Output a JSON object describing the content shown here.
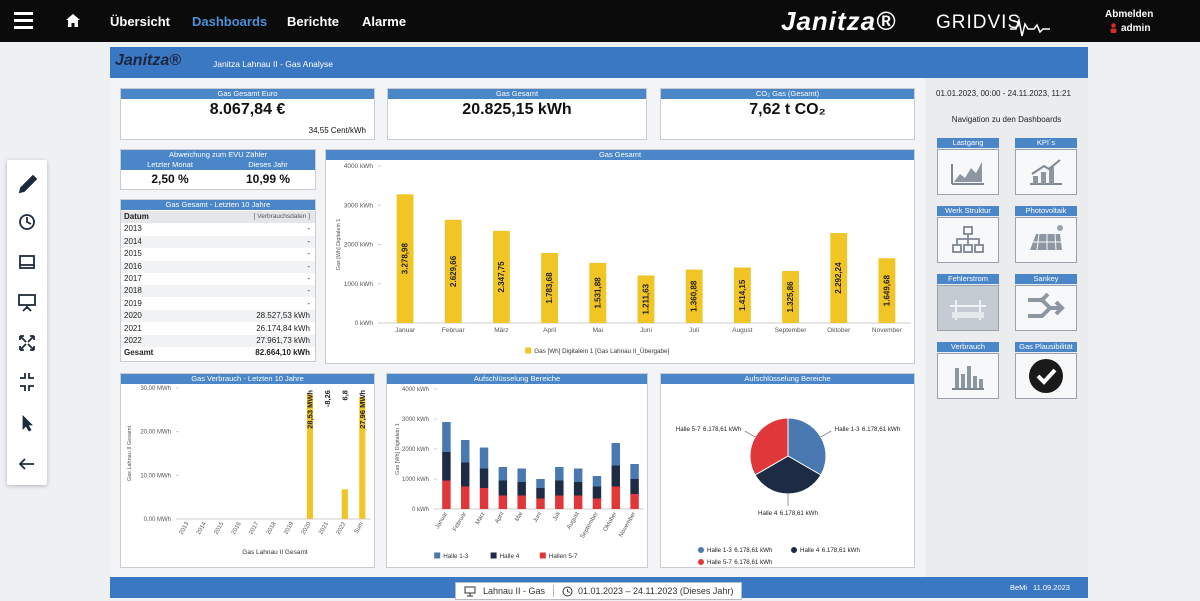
{
  "nav": {
    "items": [
      "Übersicht",
      "Dashboards",
      "Berichte",
      "Alarme"
    ],
    "brand": "Janitza®",
    "product": "GRIDVIS",
    "logout": "Abmelden",
    "user": "admin"
  },
  "header": {
    "logo": "Janitza®",
    "title": "Janitza Lahnau II - Gas Analyse"
  },
  "kpis": [
    {
      "title": "Gas Gesamt Euro",
      "value": "8.067,84 €",
      "note": "34,55 Cent/kWh"
    },
    {
      "title": "Gas Gesamt",
      "value": "20.825,15 kWh"
    },
    {
      "title": "CO₂ Gas (Gesamt)",
      "value": "7,62 t CO₂"
    }
  ],
  "deviation": {
    "title": "Abweichung zum EVU Zähler",
    "columns": [
      "Letzter Monat",
      "Dieses Jahr"
    ],
    "values": [
      "2,50 %",
      "10,99 %"
    ]
  },
  "table": {
    "title": "Gas Gesamt - Letzten 10 Jahre",
    "columns": [
      "Datum",
      "[ Verbrauchsdaten ]"
    ],
    "rows": [
      [
        "2013",
        "-"
      ],
      [
        "2014",
        "-"
      ],
      [
        "2015",
        "-"
      ],
      [
        "2016",
        "-"
      ],
      [
        "2017",
        "-"
      ],
      [
        "2018",
        "-"
      ],
      [
        "2019",
        "-"
      ],
      [
        "2020",
        "28.527,53 kWh"
      ],
      [
        "2021",
        "26.174,84 kWh"
      ],
      [
        "2022",
        "27.961,73 kWh"
      ]
    ],
    "total": [
      "Gesamt",
      "82.664,10 kWh"
    ]
  },
  "chart_data": [
    {
      "type": "bar",
      "title": "Gas Gesamt",
      "categories": [
        "Januar",
        "Februar",
        "März",
        "April",
        "Mai",
        "Juni",
        "Juli",
        "August",
        "September",
        "Oktober",
        "November"
      ],
      "series": [
        {
          "name": "Gas [Wh] Digitalein 1 [Gas Lahnau II_Übergabe]",
          "color": "#f2c526",
          "values": [
            3278.98,
            2629.66,
            2347.75,
            1783.68,
            1531.88,
            1211.63,
            1360.88,
            1414.15,
            1325.86,
            2292.24,
            1649.68
          ],
          "value_labels": [
            "3.278,98",
            "2.629,66",
            "2.347,75",
            "1.783,68",
            "1.531,88",
            "1.211,63",
            "1.360,88",
            "1.414,15",
            "1.325,86",
            "2.292,24",
            "1.649,68"
          ]
        }
      ],
      "ylabel": "Gas [Wh] Digitalein 1",
      "ylim": [
        0,
        4000
      ],
      "yticks": [
        {
          "value": 0,
          "label": "0 kWh"
        },
        {
          "value": 1000,
          "label": "1000 kWh"
        },
        {
          "value": 2000,
          "label": "2000 kWh"
        },
        {
          "value": 3000,
          "label": "3000 kWh"
        },
        {
          "value": 4000,
          "label": "4000 kWh"
        }
      ],
      "grid": false,
      "legend": "bottom"
    },
    {
      "type": "bar",
      "title": "Gas Verbrauch - Letzten 10 Jahre",
      "categories": [
        "2013",
        "2014",
        "2015",
        "2016",
        "2017",
        "2018",
        "2019",
        "2020",
        "2021",
        "2022",
        "Sum"
      ],
      "series": [
        {
          "color": "#f2c526",
          "values": [
            null,
            null,
            null,
            null,
            null,
            null,
            null,
            28.53,
            -8.26,
            6.8,
            27.96
          ],
          "value_labels": [
            null,
            null,
            null,
            null,
            null,
            null,
            null,
            "28,53 MWh",
            "-8,26",
            "6,8",
            "27,96 MWh"
          ]
        }
      ],
      "ylabel": "Gas Lahnau II Gesamt",
      "xlabel": "Gas Lahnau II Gesamt",
      "ylim": [
        0,
        30
      ],
      "yticks": [
        {
          "value": 0,
          "label": "0,00 MWh"
        },
        {
          "value": 10,
          "label": "10,00 MWh"
        },
        {
          "value": 20,
          "label": "20,00 MWh"
        },
        {
          "value": 30,
          "label": "30,00 MWh"
        }
      ],
      "grid": false
    },
    {
      "type": "stacked_bar",
      "title": "Aufschlüsselung Bereiche",
      "categories": [
        "Januar",
        "Februar",
        "März",
        "April",
        "Mai",
        "Juni",
        "Juli",
        "August",
        "September",
        "Oktober",
        "November"
      ],
      "series": [
        {
          "name": "Halle 1-3",
          "color": "#4a78b0",
          "values": [
            1000,
            750,
            700,
            450,
            450,
            300,
            450,
            450,
            350,
            750,
            500
          ]
        },
        {
          "name": "Halle 4",
          "color": "#1e2b45",
          "values": [
            950,
            800,
            650,
            500,
            450,
            350,
            500,
            450,
            400,
            700,
            500
          ]
        },
        {
          "name": "Hallen 5-7",
          "color": "#e0373a",
          "values": [
            950,
            750,
            700,
            450,
            450,
            350,
            450,
            450,
            350,
            750,
            500
          ]
        }
      ],
      "ylabel": "Gas [Wh] Digitalein 1",
      "ylim": [
        0,
        4000
      ],
      "yticks": [
        {
          "value": 0,
          "label": "0 kWh"
        },
        {
          "value": 1000,
          "label": "1000 kWh"
        },
        {
          "value": 2000,
          "label": "2000 kWh"
        },
        {
          "value": 3000,
          "label": "3000 kWh"
        },
        {
          "value": 4000,
          "label": "4000 kWh"
        }
      ],
      "grid": false,
      "legend": "bottom"
    },
    {
      "type": "pie",
      "title": "Aufschlüsselung Bereiche",
      "categories": [
        "Halle 1-3",
        "Halle 4",
        "Halle 5-7"
      ],
      "values": [
        6178.61,
        6178.61,
        6178.61
      ],
      "value_labels": [
        "6.178,61 kWh",
        "6.178,61 kWh",
        "6.178,61 kWh"
      ],
      "colors": [
        "#4a78b0",
        "#1e2b45",
        "#e0373a"
      ],
      "legend": "bottom"
    }
  ],
  "sidebar": {
    "period": "01.01.2023, 00:00 - 24.11.2023, 11:21",
    "heading": "Navigation zu den Dashboards",
    "tiles": [
      "Lastgang",
      "KPI´s",
      "Werk Struktur",
      "Photovoltaik",
      "Fehlerstrom",
      "Sankey",
      "Verbrauch",
      "Gas Plausibilität"
    ]
  },
  "footer": {
    "user": "BeMi",
    "date": "11.09.2023",
    "dashboard": "Lahnau II - Gas",
    "period": "01.01.2023 – 24.11.2023 (Dieses Jahr)"
  }
}
